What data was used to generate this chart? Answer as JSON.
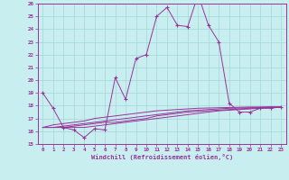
{
  "xlabel": "Windchill (Refroidissement éolien,°C)",
  "bg_color": "#c8eef0",
  "grid_color": "#a0d8d8",
  "line_color": "#993399",
  "xlim": [
    -0.5,
    23.5
  ],
  "ylim": [
    15,
    26
  ],
  "yticks": [
    15,
    16,
    17,
    18,
    19,
    20,
    21,
    22,
    23,
    24,
    25,
    26
  ],
  "xticks": [
    0,
    1,
    2,
    3,
    4,
    5,
    6,
    7,
    8,
    9,
    10,
    11,
    12,
    13,
    14,
    15,
    16,
    17,
    18,
    19,
    20,
    21,
    22,
    23
  ],
  "series": [
    [
      19,
      17.8,
      16.3,
      16.1,
      15.5,
      16.2,
      16.1,
      20.2,
      18.5,
      21.7,
      22.0,
      25.0,
      25.7,
      24.3,
      24.2,
      26.7,
      24.3,
      23.0,
      18.2,
      17.5,
      17.5,
      17.8,
      17.8,
      17.9
    ],
    [
      16.3,
      16.3,
      16.3,
      16.3,
      16.3,
      16.4,
      16.5,
      16.6,
      16.7,
      16.8,
      16.9,
      17.0,
      17.1,
      17.2,
      17.3,
      17.4,
      17.5,
      17.6,
      17.65,
      17.7,
      17.75,
      17.8,
      17.85,
      17.9
    ],
    [
      16.3,
      16.3,
      16.3,
      16.4,
      16.5,
      16.6,
      16.7,
      16.7,
      16.8,
      16.9,
      17.0,
      17.2,
      17.3,
      17.4,
      17.5,
      17.55,
      17.6,
      17.65,
      17.7,
      17.75,
      17.8,
      17.85,
      17.9,
      17.9
    ],
    [
      16.3,
      16.3,
      16.4,
      16.5,
      16.6,
      16.7,
      16.8,
      16.9,
      17.0,
      17.1,
      17.2,
      17.3,
      17.4,
      17.5,
      17.6,
      17.65,
      17.7,
      17.75,
      17.8,
      17.82,
      17.84,
      17.86,
      17.88,
      17.9
    ],
    [
      16.3,
      16.5,
      16.6,
      16.7,
      16.8,
      17.0,
      17.1,
      17.2,
      17.3,
      17.4,
      17.5,
      17.6,
      17.65,
      17.7,
      17.75,
      17.8,
      17.82,
      17.84,
      17.86,
      17.88,
      17.9,
      17.9,
      17.9,
      17.9
    ]
  ]
}
